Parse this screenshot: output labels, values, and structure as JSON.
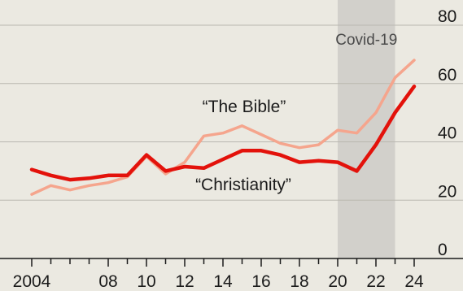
{
  "chart_data": {
    "type": "line",
    "title": "",
    "xlabel": "",
    "ylabel": "",
    "ylim": [
      0,
      80
    ],
    "xlim": [
      2004,
      2024
    ],
    "grid": true,
    "legend": "none",
    "x_tick_labels": [
      {
        "x": 2004,
        "label": "2004"
      },
      {
        "x": 2008,
        "label": "08"
      },
      {
        "x": 2010,
        "label": "10"
      },
      {
        "x": 2012,
        "label": "12"
      },
      {
        "x": 2014,
        "label": "14"
      },
      {
        "x": 2016,
        "label": "16"
      },
      {
        "x": 2018,
        "label": "18"
      },
      {
        "x": 2020,
        "label": "20"
      },
      {
        "x": 2022,
        "label": "22"
      },
      {
        "x": 2024,
        "label": "24"
      }
    ],
    "x_minor_ticks": [
      2004,
      2005,
      2006,
      2007,
      2008,
      2009,
      2010,
      2011,
      2012,
      2013,
      2014,
      2015,
      2016,
      2017,
      2018,
      2019,
      2020,
      2021,
      2022,
      2023,
      2024
    ],
    "y_ticks": [
      0,
      20,
      40,
      60,
      80
    ],
    "y_tick_labels": [
      "0",
      "20",
      "40",
      "60",
      "80"
    ],
    "shaded_region": {
      "label": "Covid-19",
      "x_start": 2020,
      "x_end": 2023,
      "color": "#d2d0cb"
    },
    "series": [
      {
        "name": "“The Bible”",
        "color": "#f5a58d",
        "points": [
          [
            2004,
            22
          ],
          [
            2005,
            25
          ],
          [
            2006,
            23.5
          ],
          [
            2007,
            25
          ],
          [
            2008,
            26
          ],
          [
            2009,
            28
          ],
          [
            2010,
            35
          ],
          [
            2011,
            29
          ],
          [
            2012,
            33
          ],
          [
            2013,
            42
          ],
          [
            2014,
            43
          ],
          [
            2015,
            45.5
          ],
          [
            2016,
            42.5
          ],
          [
            2017,
            39.5
          ],
          [
            2018,
            38
          ],
          [
            2019,
            39
          ],
          [
            2020,
            44
          ],
          [
            2021,
            43
          ],
          [
            2022,
            50
          ],
          [
            2023,
            62
          ],
          [
            2024,
            68
          ]
        ]
      },
      {
        "name": "“Christianity”",
        "color": "#e3120b",
        "points": [
          [
            2004,
            30.5
          ],
          [
            2005,
            28.5
          ],
          [
            2006,
            27
          ],
          [
            2007,
            27.5
          ],
          [
            2008,
            28.5
          ],
          [
            2009,
            28.5
          ],
          [
            2010,
            35.5
          ],
          [
            2011,
            30
          ],
          [
            2012,
            31.5
          ],
          [
            2013,
            31
          ],
          [
            2014,
            34
          ],
          [
            2015,
            37
          ],
          [
            2016,
            37
          ],
          [
            2017,
            35.5
          ],
          [
            2018,
            33
          ],
          [
            2019,
            33.5
          ],
          [
            2020,
            33
          ],
          [
            2021,
            30
          ],
          [
            2022,
            39
          ],
          [
            2023,
            50
          ],
          [
            2024,
            59
          ]
        ]
      }
    ]
  },
  "colors": {
    "background": "#ebe9e1",
    "gridline": "#b9b7b0",
    "axis": "#1b1b1b"
  }
}
